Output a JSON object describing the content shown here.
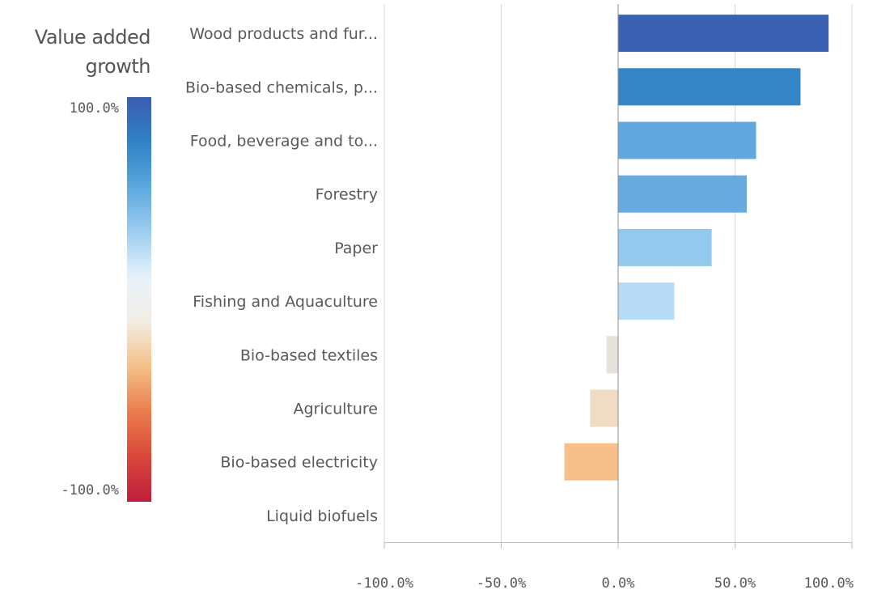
{
  "legend": {
    "title_line1": "Value added",
    "title_line2": "growth",
    "max_label": "100.0%",
    "min_label": "-100.0%",
    "gradient_colors": [
      "#3a5daf",
      "#2f82c6",
      "#5ca8de",
      "#9dcdf0",
      "#e6f2fb",
      "#f3ede3",
      "#f4c087",
      "#ea7d4c",
      "#d9473b",
      "#be1e3c"
    ]
  },
  "chart_data": {
    "type": "bar",
    "orientation": "horizontal",
    "categories": [
      "Wood products and fur...",
      "Bio-based chemicals, p...",
      "Food, beverage and to...",
      "Forestry",
      "Paper",
      "Fishing and Aquaculture",
      "Bio-based textiles",
      "Agriculture",
      "Bio-based electricity",
      "Liquid biofuels"
    ],
    "values": [
      90,
      78,
      59,
      55,
      40,
      24,
      -5,
      -12,
      -23,
      0
    ],
    "bar_colors": [
      "#3b62b2",
      "#3485c6",
      "#62a7dd",
      "#66aade",
      "#94c8ed",
      "#b7dbf4",
      "#e5e2dc",
      "#f0dcc5",
      "#f5c08a",
      null
    ],
    "xlim": [
      -100,
      100
    ],
    "xticks": [
      -100,
      -50,
      0,
      50,
      100
    ],
    "xtick_labels": [
      "-100.0%",
      "-50.0%",
      "0.0%",
      "50.0%",
      "100.0%"
    ],
    "grid": true
  }
}
